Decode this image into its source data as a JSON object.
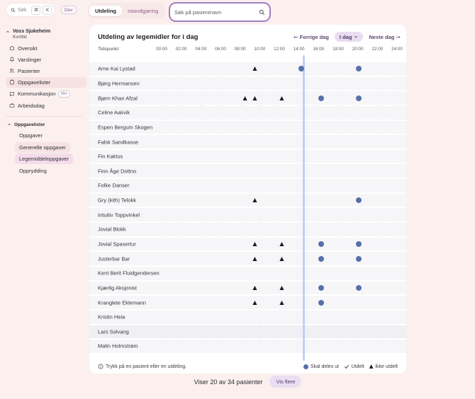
{
  "topbar": {
    "global_search": {
      "label": "Søk",
      "key1": "⌘",
      "key2": "K"
    },
    "dev_badge": "Dev",
    "tabs": [
      {
        "label": "Utdeling",
        "active": true
      },
      {
        "label": "Istandgjøring",
        "active": false
      }
    ],
    "patient_search": {
      "placeholder": "Søk på pasientnavn"
    }
  },
  "sidebar": {
    "org": {
      "name": "Voss Sjukeheim",
      "unit": "Korttid"
    },
    "items": [
      {
        "label": "Oversikt",
        "icon": "home-icon",
        "active": false
      },
      {
        "label": "Varslinger",
        "icon": "bell-icon",
        "active": false
      },
      {
        "label": "Pasienter",
        "icon": "patients-icon",
        "active": false
      },
      {
        "label": "Oppgavelister",
        "icon": "clipboard-icon",
        "active": true
      },
      {
        "label": "Kommunikasjon",
        "icon": "chat-icon",
        "active": false,
        "badge": "99+"
      },
      {
        "label": "Arbeidsdag",
        "icon": "briefcase-icon",
        "active": false
      }
    ],
    "section": {
      "title": "Oppgavelister",
      "items": [
        {
          "label": "Oppgaver",
          "highlight": "none"
        },
        {
          "label": "Generelle oppgaver",
          "highlight": "soft"
        },
        {
          "label": "Legemiddeloppgaver",
          "highlight": "selected"
        },
        {
          "label": "Opprydding",
          "highlight": "none"
        }
      ]
    }
  },
  "main": {
    "title": "Utdeling av legemidler for i dag",
    "nav": {
      "prev": "Forrige dag",
      "today": "I dag",
      "next": "Neste dag"
    },
    "table": {
      "time_col_label": "Tidspunkt",
      "time_ticks": [
        "00:00",
        "02:00",
        "04:00",
        "06:00",
        "08:00",
        "10:00",
        "12:00",
        "14:00",
        "16:00",
        "18:00",
        "20:00",
        "22:00",
        "24:00"
      ],
      "now_hour": 14.46,
      "rows": [
        {
          "name": "Arne Kai Lystad",
          "shade": false,
          "markers": [
            {
              "hour": 9.5,
              "type": "ikke-utdelt"
            },
            {
              "hour": 14.25,
              "type": "skal-deles-ut"
            },
            {
              "hour": 20.1,
              "type": "skal-deles-ut"
            }
          ]
        },
        {
          "name": "Bjørg Hermansen",
          "shade": false,
          "markers": []
        },
        {
          "name": "Bjørn Khan Afzal",
          "shade": false,
          "markers": [
            {
              "hour": 8.5,
              "type": "ikke-utdelt"
            },
            {
              "hour": 9.5,
              "type": "ikke-utdelt"
            },
            {
              "hour": 12.25,
              "type": "ikke-utdelt"
            },
            {
              "hour": 16.25,
              "type": "skal-deles-ut"
            },
            {
              "hour": 20.1,
              "type": "skal-deles-ut"
            }
          ]
        },
        {
          "name": "Celine Aakvik",
          "shade": false,
          "markers": []
        },
        {
          "name": "Espen Bergum Skogen",
          "shade": false,
          "markers": []
        },
        {
          "name": "Falsk Sandkasse",
          "shade": false,
          "markers": []
        },
        {
          "name": "Fin Kaktus",
          "shade": false,
          "markers": []
        },
        {
          "name": "Finn Åge Dottno",
          "shade": false,
          "markers": []
        },
        {
          "name": "Folke Danser",
          "shade": false,
          "markers": []
        },
        {
          "name": "Gry (kith) Telokk",
          "shade": false,
          "markers": [
            {
              "hour": 9.5,
              "type": "ikke-utdelt"
            },
            {
              "hour": 20.1,
              "type": "skal-deles-ut"
            }
          ]
        },
        {
          "name": "Intuitiv Toppvinkel",
          "shade": false,
          "markers": []
        },
        {
          "name": "Jovial Blokk",
          "shade": false,
          "markers": []
        },
        {
          "name": "Jovial Spasertur",
          "shade": false,
          "markers": [
            {
              "hour": 9.5,
              "type": "ikke-utdelt"
            },
            {
              "hour": 12.25,
              "type": "ikke-utdelt"
            },
            {
              "hour": 16.25,
              "type": "skal-deles-ut"
            },
            {
              "hour": 20.1,
              "type": "skal-deles-ut"
            }
          ]
        },
        {
          "name": "Justerbar Bar",
          "shade": false,
          "markers": [
            {
              "hour": 9.5,
              "type": "ikke-utdelt"
            },
            {
              "hour": 12.25,
              "type": "ikke-utdelt"
            },
            {
              "hour": 16.25,
              "type": "skal-deles-ut"
            },
            {
              "hour": 20.1,
              "type": "skal-deles-ut"
            }
          ]
        },
        {
          "name": "Kent Berit Fluidgendersen",
          "shade": false,
          "markers": []
        },
        {
          "name": "Kjærlig Aksjonist",
          "shade": false,
          "markers": [
            {
              "hour": 9.5,
              "type": "ikke-utdelt"
            },
            {
              "hour": 12.25,
              "type": "ikke-utdelt"
            },
            {
              "hour": 16.25,
              "type": "skal-deles-ut"
            },
            {
              "hour": 20.1,
              "type": "skal-deles-ut"
            }
          ]
        },
        {
          "name": "Kranglete Ektemann",
          "shade": false,
          "markers": [
            {
              "hour": 9.5,
              "type": "ikke-utdelt"
            },
            {
              "hour": 12.25,
              "type": "ikke-utdelt"
            },
            {
              "hour": 16.25,
              "type": "skal-deles-ut"
            }
          ]
        },
        {
          "name": "Kristin Heia",
          "shade": false,
          "markers": []
        },
        {
          "name": "Lars Solvang",
          "shade": true,
          "markers": []
        },
        {
          "name": "Malin Holmstrøm",
          "shade": false,
          "markers": []
        }
      ]
    },
    "footer": {
      "hint": "Trykk på en pasient eller en utdeling.",
      "legend": [
        {
          "marker": "circle",
          "label": "Skal deles ut"
        },
        {
          "marker": "check",
          "label": "Utdelt"
        },
        {
          "marker": "triangle",
          "label": "Ikke utdelt"
        }
      ]
    }
  },
  "bottom": {
    "count_text": "Viser 20 av 34 pasienter",
    "more_button": "Vis flere"
  },
  "colors": {
    "page_bg": "#fbf0ee",
    "accent_purple": "#a27fc2",
    "marker_blue": "#5671a9",
    "marker_dark": "#1b1b21",
    "now_line": "#bed1f4",
    "active_pill_pink": "#f6e1e3",
    "selected_pill_purple": "#f4dceb"
  }
}
